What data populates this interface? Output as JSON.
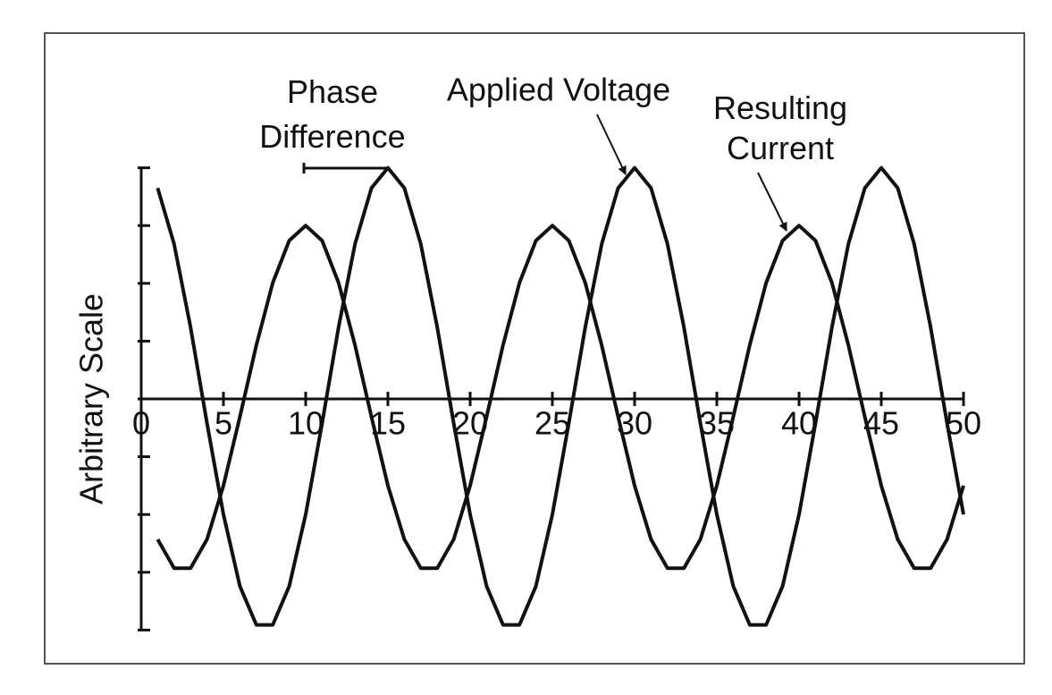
{
  "chart_data": {
    "type": "line",
    "x": [
      1,
      2,
      3,
      4,
      5,
      6,
      7,
      8,
      9,
      10,
      11,
      12,
      13,
      14,
      15,
      16,
      17,
      18,
      19,
      20,
      21,
      22,
      23,
      24,
      25,
      26,
      27,
      28,
      29,
      30,
      31,
      32,
      33,
      34,
      35,
      36,
      37,
      38,
      39,
      40,
      41,
      42,
      43,
      44,
      45,
      46,
      47,
      48,
      49,
      50
    ],
    "series": [
      {
        "name": "Applied Voltage",
        "color": "#111111",
        "values": [
          3.65,
          2.68,
          1.24,
          -0.42,
          -2,
          -3.24,
          -3.91,
          -3.91,
          -3.24,
          -2,
          -0.42,
          1.24,
          2.68,
          3.65,
          4,
          3.65,
          2.68,
          1.24,
          -0.42,
          -2,
          -3.24,
          -3.91,
          -3.91,
          -3.24,
          -2,
          -0.42,
          1.24,
          2.68,
          3.65,
          4,
          3.65,
          2.68,
          1.24,
          -0.42,
          -2,
          -3.24,
          -3.91,
          -3.91,
          -3.24,
          -2,
          -0.42,
          1.24,
          2.68,
          3.65,
          4,
          3.65,
          2.68,
          1.24,
          -0.42,
          -2
        ]
      },
      {
        "name": "Resulting Current",
        "color": "#111111",
        "values": [
          -2.43,
          -2.93,
          -2.93,
          -2.43,
          -1.5,
          -0.31,
          0.93,
          2.01,
          2.74,
          3,
          2.74,
          2.01,
          0.93,
          -0.31,
          -1.5,
          -2.43,
          -2.93,
          -2.93,
          -2.43,
          -1.5,
          -0.31,
          0.93,
          2.01,
          2.74,
          3,
          2.74,
          2.01,
          0.93,
          -0.31,
          -1.5,
          -2.43,
          -2.93,
          -2.93,
          -2.43,
          -1.5,
          -0.31,
          0.93,
          2.01,
          2.74,
          3,
          2.74,
          2.01,
          0.93,
          -0.31,
          -1.5,
          -2.43,
          -2.93,
          -2.93,
          -2.43,
          -1.5
        ]
      }
    ],
    "y_label": "Arbitrary Scale",
    "annotation": "Phase Difference",
    "xlim": [
      0,
      50
    ],
    "xticks": [
      0,
      5,
      10,
      15,
      20,
      25,
      30,
      35,
      40,
      45,
      50
    ],
    "ylim": [
      -4,
      4
    ],
    "yticks": [
      -4,
      -3,
      -2,
      -1,
      0,
      1,
      2,
      3,
      4
    ]
  }
}
